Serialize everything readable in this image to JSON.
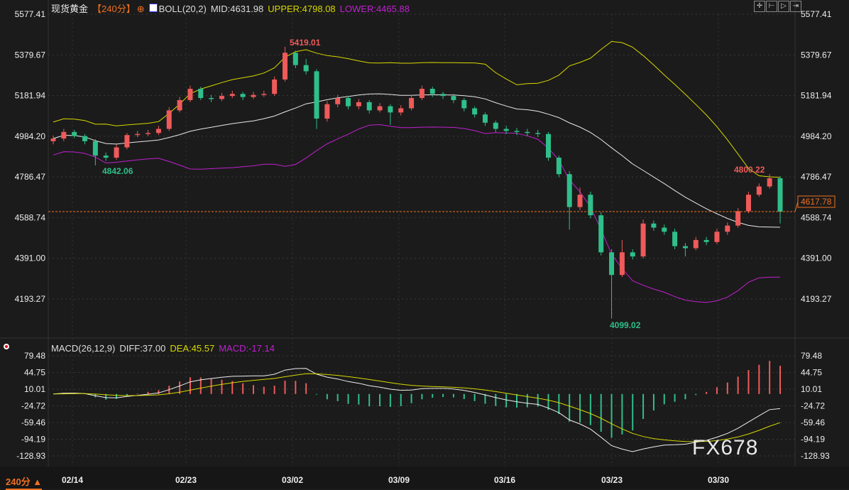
{
  "header": {
    "symbol": "现货黄金",
    "period": "【240分】",
    "indicator": "BOLL(20,2)",
    "mid": "MID:4631.98",
    "upper": "UPPER:4798.08",
    "lower": "LOWER:4465.88"
  },
  "macd_header": {
    "name": "MACD(26,12,9)",
    "diff": "DIFF:37.00",
    "dea": "DEA:45.57",
    "macd": "MACD:-17.14"
  },
  "toolbar": [
    {
      "icon": "crosshair-icon",
      "glyph": "✛"
    },
    {
      "icon": "zoom-in-icon",
      "glyph": "⊢"
    },
    {
      "icon": "play-icon",
      "glyph": "▷"
    },
    {
      "icon": "move-right-icon",
      "glyph": "⇥"
    }
  ],
  "period_selector": "240分 ▲",
  "watermark": "FX678",
  "colors": {
    "up": "#ef5a5a",
    "down": "#2fbf8a",
    "mid": "#e8e8e8",
    "upper": "#d8d800",
    "lower": "#c020d0",
    "last": "#f07020"
  },
  "chart_data": [
    {
      "type": "candlestick",
      "yaxis_ticks": [
        "5577.41",
        "5379.67",
        "5181.94",
        "4984.20",
        "4786.47",
        "4588.74",
        "4391.00",
        "4193.27"
      ],
      "ylim": [
        4193.27,
        5577.41
      ],
      "xaxis_ticks": [
        "02/14",
        "02/23",
        "03/02",
        "03/09",
        "03/16",
        "03/23",
        "03/30"
      ],
      "last_price": "4617.78",
      "annotations": {
        "high": "5419.01",
        "low": "4099.02",
        "low_left": "4842.06",
        "recent_high": "4800.22"
      },
      "ohlc": [
        [
          4960,
          4988,
          4945,
          4973
        ],
        [
          4973,
          5020,
          4960,
          5005
        ],
        [
          5005,
          5015,
          4975,
          4985
        ],
        [
          4985,
          4995,
          4945,
          4960
        ],
        [
          4960,
          4970,
          4842,
          4890
        ],
        [
          4890,
          4905,
          4865,
          4880
        ],
        [
          4880,
          4945,
          4870,
          4930
        ],
        [
          4930,
          5000,
          4920,
          4990
        ],
        [
          4990,
          5010,
          4980,
          4995
        ],
        [
          4995,
          5015,
          4985,
          5000
        ],
        [
          5000,
          5035,
          4990,
          5020
        ],
        [
          5020,
          5125,
          5010,
          5110
        ],
        [
          5110,
          5175,
          5100,
          5160
        ],
        [
          5160,
          5230,
          5150,
          5215
        ],
        [
          5215,
          5225,
          5160,
          5170
        ],
        [
          5170,
          5185,
          5150,
          5165
        ],
        [
          5165,
          5195,
          5155,
          5180
        ],
        [
          5180,
          5205,
          5170,
          5190
        ],
        [
          5190,
          5200,
          5160,
          5175
        ],
        [
          5175,
          5200,
          5165,
          5185
        ],
        [
          5185,
          5205,
          5175,
          5190
        ],
        [
          5190,
          5275,
          5180,
          5260
        ],
        [
          5260,
          5419.01,
          5250,
          5390
        ],
        [
          5390,
          5400,
          5315,
          5330
        ],
        [
          5330,
          5360,
          5285,
          5300
        ],
        [
          5300,
          5310,
          5020,
          5070
        ],
        [
          5070,
          5155,
          5055,
          5140
        ],
        [
          5140,
          5185,
          5125,
          5170
        ],
        [
          5170,
          5180,
          5115,
          5130
        ],
        [
          5130,
          5165,
          5115,
          5150
        ],
        [
          5150,
          5160,
          5095,
          5110
        ],
        [
          5110,
          5145,
          5100,
          5130
        ],
        [
          5130,
          5140,
          5040,
          5100
        ],
        [
          5100,
          5135,
          5085,
          5120
        ],
        [
          5120,
          5185,
          5110,
          5170
        ],
        [
          5170,
          5230,
          5160,
          5215
        ],
        [
          5215,
          5225,
          5175,
          5190
        ],
        [
          5190,
          5200,
          5165,
          5180
        ],
        [
          5180,
          5190,
          5145,
          5160
        ],
        [
          5160,
          5170,
          5105,
          5120
        ],
        [
          5120,
          5130,
          5075,
          5090
        ],
        [
          5090,
          5100,
          5035,
          5050
        ],
        [
          5050,
          5060,
          5005,
          5020
        ],
        [
          5020,
          5035,
          4995,
          5010
        ],
        [
          5010,
          5025,
          4990,
          5005
        ],
        [
          5005,
          5020,
          4985,
          5000
        ],
        [
          5000,
          5015,
          4980,
          4995
        ],
        [
          4995,
          5005,
          4865,
          4880
        ],
        [
          4880,
          4890,
          4785,
          4800
        ],
        [
          4800,
          4815,
          4530,
          4640
        ],
        [
          4640,
          4735,
          4625,
          4700
        ],
        [
          4700,
          4715,
          4585,
          4600
        ],
        [
          4600,
          4615,
          4405,
          4420
        ],
        [
          4420,
          4435,
          4099.02,
          4310
        ],
        [
          4310,
          4480,
          4300,
          4420
        ],
        [
          4420,
          4435,
          4385,
          4400
        ],
        [
          4400,
          4580,
          4390,
          4560
        ],
        [
          4560,
          4575,
          4525,
          4540
        ],
        [
          4540,
          4555,
          4505,
          4520
        ],
        [
          4520,
          4535,
          4435,
          4450
        ],
        [
          4450,
          4465,
          4400,
          4440
        ],
        [
          4440,
          4495,
          4430,
          4480
        ],
        [
          4480,
          4495,
          4455,
          4470
        ],
        [
          4470,
          4535,
          4460,
          4520
        ],
        [
          4520,
          4565,
          4505,
          4550
        ],
        [
          4550,
          4635,
          4540,
          4620
        ],
        [
          4620,
          4715,
          4610,
          4700
        ],
        [
          4700,
          4755,
          4690,
          4740
        ],
        [
          4740,
          4800.22,
          4730,
          4780
        ],
        [
          4780,
          4790,
          4560,
          4617.78
        ]
      ]
    },
    {
      "type": "bar+line",
      "yaxis_ticks": [
        "79.48",
        "44.75",
        "10.01",
        "-24.72",
        "-59.46",
        "-94.19",
        "-128.93"
      ],
      "ylim": [
        -128.93,
        79.48
      ],
      "series": [
        {
          "name": "DIFF",
          "last": 37.0
        },
        {
          "name": "DEA",
          "last": 45.57
        },
        {
          "name": "MACD",
          "last": -17.14
        }
      ]
    }
  ]
}
